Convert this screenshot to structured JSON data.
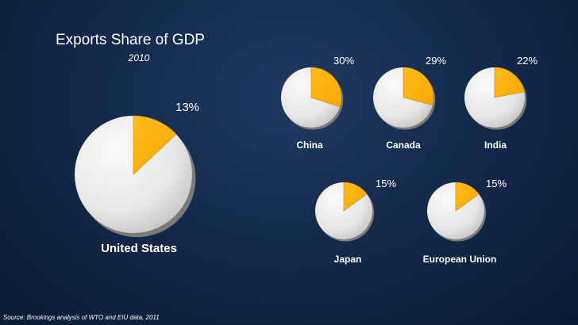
{
  "header": {
    "title": "Exports Share of GDP",
    "year": "2010"
  },
  "source": "Source: Brookings analysis of WTO and EIU data, 2011",
  "colors": {
    "slice": "#f7a900",
    "rest": "#e6e6e6",
    "shadow": "#7a7a7a"
  },
  "chart_data": {
    "type": "pie",
    "title": "Exports Share of GDP",
    "subtitle": "2010",
    "series": [
      {
        "name": "United States",
        "value": 13,
        "label": "13%"
      },
      {
        "name": "China",
        "value": 30,
        "label": "30%"
      },
      {
        "name": "Canada",
        "value": 29,
        "label": "29%"
      },
      {
        "name": "India",
        "value": 22,
        "label": "22%"
      },
      {
        "name": "Japan",
        "value": 15,
        "label": "15%"
      },
      {
        "name": "European Union",
        "value": 15,
        "label": "15%"
      }
    ]
  }
}
